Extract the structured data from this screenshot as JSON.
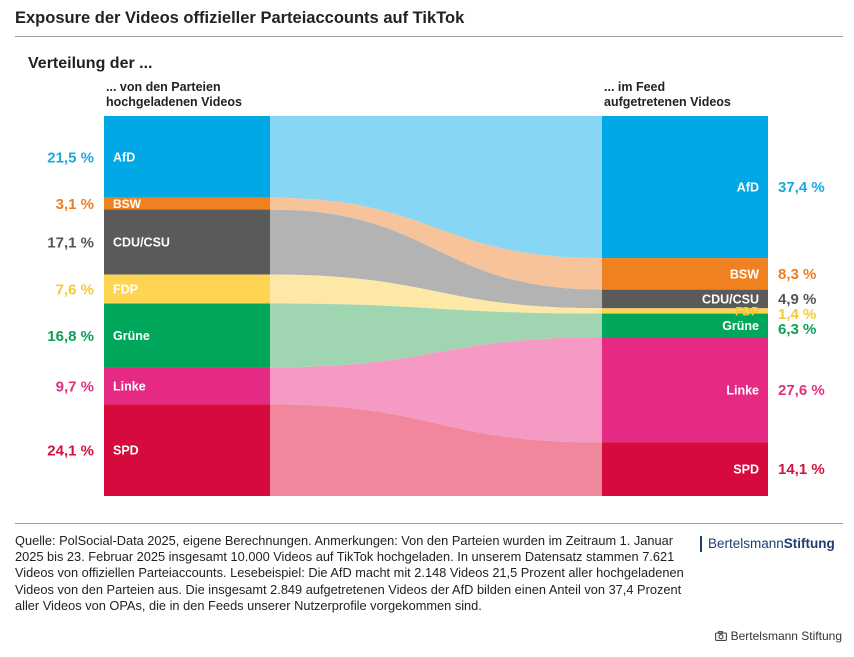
{
  "title": "Exposure der Videos offizieller Parteiaccounts auf TikTok",
  "subtitle": "Verteilung der ...",
  "chart_data": {
    "type": "sankey",
    "left_header": [
      "... von den Parteien",
      "hochgeladenen Videos"
    ],
    "right_header": [
      "... im Feed",
      "aufgetretenen Videos"
    ],
    "parties": [
      {
        "name": "AfD",
        "uploaded": 21.5,
        "feed": 37.4,
        "uploaded_label": "21,5 %",
        "feed_label": "37,4 %",
        "color": "#00a8e6",
        "flow_color": "#86d6f4",
        "label_color": "#1ba8e0"
      },
      {
        "name": "BSW",
        "uploaded": 3.1,
        "feed": 8.3,
        "uploaded_label": "3,1 %",
        "feed_label": "8,3 %",
        "color": "#f08120",
        "flow_color": "#f7c39b",
        "label_color": "#ef7d22"
      },
      {
        "name": "CDU/CSU",
        "uploaded": 17.1,
        "feed": 4.9,
        "uploaded_label": "17,1 %",
        "feed_label": "4,9 %",
        "color": "#5a5a5a",
        "flow_color": "#b3b3b3",
        "label_color": "#555555"
      },
      {
        "name": "FDP",
        "uploaded": 7.6,
        "feed": 1.4,
        "uploaded_label": "7,6 %",
        "feed_label": "1,4 %",
        "color": "#fdd553",
        "flow_color": "#fde8a8",
        "label_color": "#f5c93a"
      },
      {
        "name": "Grüne",
        "uploaded": 16.8,
        "feed": 6.3,
        "uploaded_label": "16,8 %",
        "feed_label": "6,3 %",
        "color": "#00a65a",
        "flow_color": "#9fd6b1",
        "label_color": "#0f9d58"
      },
      {
        "name": "Linke",
        "uploaded": 9.7,
        "feed": 27.6,
        "uploaded_label": "9,7 %",
        "feed_label": "27,6 %",
        "color": "#e62a83",
        "flow_color": "#f59ac4",
        "label_color": "#e0307f"
      },
      {
        "name": "SPD",
        "uploaded": 24.1,
        "feed": 14.1,
        "uploaded_label": "24,1 %",
        "feed_label": "14,1 %",
        "color": "#d60a3c",
        "flow_color": "#f1879c",
        "label_color": "#d41140"
      }
    ]
  },
  "footer": {
    "source": "Quelle: PolSocial-Data 2025, eigene Berechnungen. Anmerkungen: Von den Parteien wurden im Zeitraum 1. Januar 2025 bis 23. Februar 2025 insgesamt 10.000 Videos auf TikTok hochgeladen. In unserem Datensatz stammen 7.621 Videos von offiziellen Parteiaccounts. Lesebeispiel: Die AfD macht mit 2.148 Videos 21,5 Prozent aller hochgeladenen Videos von den Parteien aus. Die insgesamt 2.849 aufgetretenen Videos der AfD bilden einen Anteil von 37,4 Prozent aller Videos von OPAs, die in den Feeds unserer Nutzerprofile vorgekommen sind.",
    "brand_regular": "Bertelsmann",
    "brand_bold": "Stiftung",
    "credit": "Bertelsmann Stiftung"
  }
}
